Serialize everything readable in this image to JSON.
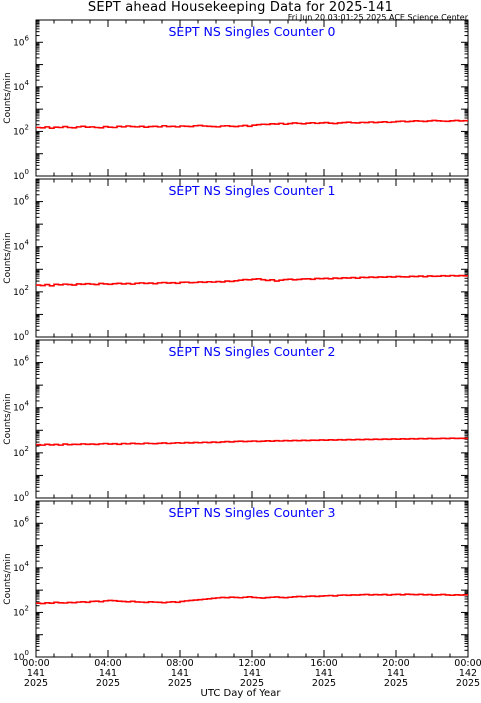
{
  "page": {
    "title": "SEPT ahead Housekeeping Data for 2025-141",
    "timestamp": "Fri Jun 20 03:01:25 2025 ACE Science Center",
    "xlabel": "UTC Day of Year"
  },
  "colors": {
    "series": "#ff0000",
    "panel_title": "#0000ff",
    "axes": "#000000",
    "background": "#ffffff"
  },
  "chart_data": [
    {
      "type": "line",
      "title": "SEPT NS Singles Counter 0",
      "ylabel": "Counts/min",
      "yscale": "log",
      "ylim": [
        1,
        10000000
      ],
      "xlim": [
        "2025-141 00:00",
        "2025-142 00:00"
      ],
      "x_step": "15 min",
      "series": [
        {
          "values": [
            150,
            145,
            160,
            140,
            155,
            150,
            165,
            150,
            145,
            160,
            170,
            155,
            160,
            150,
            145,
            165,
            155,
            150,
            170,
            160,
            175,
            165,
            160,
            170,
            155,
            165,
            170,
            160,
            180,
            165,
            170,
            160,
            175,
            170,
            165,
            180,
            185,
            175,
            170,
            165,
            160,
            175,
            180,
            170,
            165,
            175,
            185,
            170,
            190,
            200,
            210,
            205,
            220,
            215,
            230,
            210,
            225,
            240,
            230,
            220,
            235,
            245,
            230,
            240,
            250,
            235,
            225,
            240,
            250,
            260,
            245,
            240,
            255,
            250,
            265,
            250,
            260,
            270,
            255,
            265,
            280,
            290,
            275,
            285,
            300,
            290,
            280,
            295,
            310,
            300,
            290,
            285,
            300,
            310,
            295,
            305
          ]
        }
      ]
    },
    {
      "type": "line",
      "title": "SEPT NS Singles Counter 1",
      "ylabel": "Counts/min",
      "yscale": "log",
      "ylim": [
        1,
        10000000
      ],
      "xlim": [
        "2025-141 00:00",
        "2025-142 00:00"
      ],
      "x_step": "15 min",
      "series": [
        {
          "values": [
            200,
            190,
            210,
            185,
            215,
            205,
            220,
            210,
            200,
            225,
            215,
            230,
            220,
            210,
            235,
            225,
            215,
            230,
            240,
            225,
            235,
            220,
            240,
            250,
            235,
            245,
            230,
            250,
            260,
            245,
            255,
            240,
            265,
            270,
            255,
            260,
            275,
            265,
            280,
            270,
            285,
            275,
            300,
            290,
            310,
            330,
            350,
            340,
            365,
            380,
            345,
            320,
            340,
            300,
            330,
            350,
            365,
            340,
            355,
            375,
            380,
            360,
            395,
            385,
            400,
            380,
            410,
            395,
            420,
            410,
            430,
            405,
            440,
            430,
            450,
            435,
            460,
            445,
            470,
            450,
            480,
            465,
            460,
            490,
            475,
            500,
            470,
            510,
            490,
            495,
            520,
            500,
            530,
            510,
            525,
            515
          ]
        }
      ]
    },
    {
      "type": "line",
      "title": "SEPT NS Singles Counter 2",
      "ylabel": "Counts/min",
      "yscale": "log",
      "ylim": [
        1,
        10000000
      ],
      "xlim": [
        "2025-141 00:00",
        "2025-142 00:00"
      ],
      "x_step": "15 min",
      "series": [
        {
          "values": [
            230,
            220,
            240,
            225,
            235,
            220,
            245,
            230,
            240,
            235,
            250,
            240,
            245,
            235,
            250,
            260,
            245,
            255,
            240,
            260,
            250,
            265,
            255,
            250,
            270,
            260,
            255,
            265,
            275,
            260,
            270,
            280,
            270,
            285,
            275,
            290,
            280,
            295,
            285,
            300,
            290,
            305,
            315,
            305,
            320,
            330,
            315,
            325,
            335,
            320,
            330,
            340,
            330,
            345,
            335,
            350,
            340,
            355,
            345,
            360,
            350,
            365,
            360,
            375,
            365,
            380,
            370,
            385,
            375,
            390,
            380,
            395,
            385,
            400,
            390,
            405,
            395,
            410,
            400,
            415,
            405,
            420,
            410,
            425,
            415,
            430,
            420,
            435,
            425,
            430,
            440,
            430,
            445,
            435,
            440,
            435
          ]
        }
      ]
    },
    {
      "type": "line",
      "title": "SEPT NS Singles Counter 3",
      "ylabel": "Counts/min",
      "yscale": "log",
      "ylim": [
        1,
        10000000
      ],
      "xlim": [
        "2025-141 00:00",
        "2025-142 00:00"
      ],
      "x_step": "15 min",
      "series": [
        {
          "values": [
            260,
            250,
            270,
            260,
            285,
            270,
            265,
            280,
            275,
            290,
            300,
            285,
            310,
            320,
            305,
            330,
            345,
            335,
            320,
            310,
            300,
            315,
            295,
            290,
            280,
            300,
            290,
            285,
            275,
            290,
            300,
            285,
            310,
            330,
            345,
            360,
            375,
            390,
            410,
            430,
            450,
            470,
            460,
            485,
            470,
            455,
            480,
            500,
            470,
            455,
            440,
            465,
            480,
            495,
            470,
            460,
            480,
            500,
            520,
            505,
            530,
            545,
            520,
            540,
            560,
            575,
            550,
            590,
            605,
            585,
            610,
            600,
            625,
            640,
            610,
            630,
            620,
            645,
            600,
            635,
            650,
            620,
            660,
            640,
            625,
            650,
            615,
            635,
            600,
            620,
            640,
            610,
            590,
            620,
            600,
            615
          ]
        }
      ]
    }
  ],
  "axes": {
    "ytick_exponents": [
      "0",
      "2",
      "4",
      "6"
    ],
    "ytick_base": "10",
    "xticks": [
      {
        "time": "00:00",
        "doy": "141",
        "year": "2025"
      },
      {
        "time": "04:00",
        "doy": "141",
        "year": "2025"
      },
      {
        "time": "08:00",
        "doy": "141",
        "year": "2025"
      },
      {
        "time": "12:00",
        "doy": "141",
        "year": "2025"
      },
      {
        "time": "16:00",
        "doy": "141",
        "year": "2025"
      },
      {
        "time": "20:00",
        "doy": "141",
        "year": "2025"
      },
      {
        "time": "00:00",
        "doy": "142",
        "year": "2025"
      }
    ]
  }
}
